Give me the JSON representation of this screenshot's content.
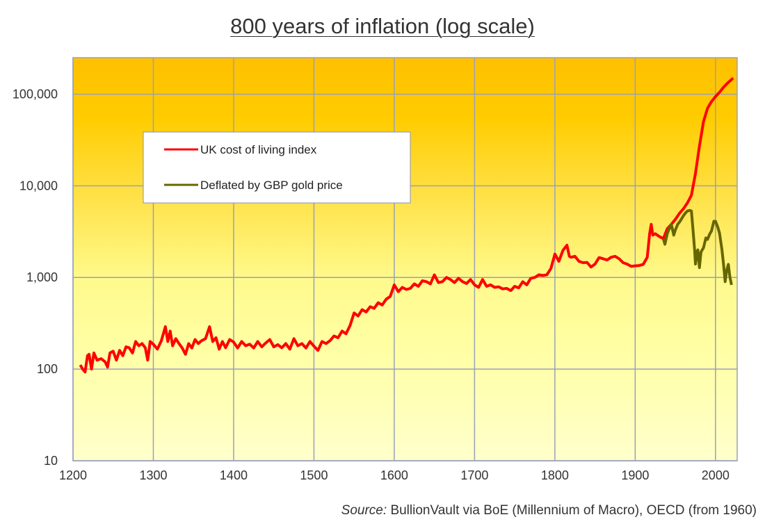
{
  "chart_data": {
    "type": "line",
    "title": "800 years of inflation (log scale)",
    "source_label": "Source:",
    "source_text": "BullionVault via BoE (Millennium of Macro), OECD (from 1960)",
    "xlabel": "",
    "ylabel": "",
    "xlim": [
      1200,
      2027
    ],
    "ylim": [
      10,
      250000
    ],
    "yscale": "log",
    "grid": true,
    "legend_position": "upper-left inside",
    "x_ticks": [
      "1200",
      "1300",
      "1400",
      "1500",
      "1600",
      "1700",
      "1800",
      "1900",
      "2000"
    ],
    "y_ticks": [
      "10",
      "100",
      "1,000",
      "10,000",
      "100,000"
    ],
    "background": {
      "top": "#FFC000",
      "bottom": "#FFFFCC"
    },
    "series": [
      {
        "name": "UK cost of living index",
        "color": "#FF0000",
        "points": [
          [
            1209,
            111
          ],
          [
            1212,
            100
          ],
          [
            1215,
            93
          ],
          [
            1218,
            140
          ],
          [
            1220,
            145
          ],
          [
            1223,
            100
          ],
          [
            1226,
            150
          ],
          [
            1230,
            125
          ],
          [
            1235,
            130
          ],
          [
            1240,
            120
          ],
          [
            1243,
            105
          ],
          [
            1246,
            150
          ],
          [
            1250,
            157
          ],
          [
            1254,
            125
          ],
          [
            1258,
            160
          ],
          [
            1262,
            140
          ],
          [
            1266,
            175
          ],
          [
            1270,
            171
          ],
          [
            1274,
            150
          ],
          [
            1278,
            200
          ],
          [
            1282,
            180
          ],
          [
            1286,
            190
          ],
          [
            1290,
            171
          ],
          [
            1293,
            125
          ],
          [
            1296,
            200
          ],
          [
            1300,
            187
          ],
          [
            1305,
            165
          ],
          [
            1310,
            204
          ],
          [
            1315,
            290
          ],
          [
            1318,
            200
          ],
          [
            1321,
            260
          ],
          [
            1324,
            180
          ],
          [
            1328,
            215
          ],
          [
            1332,
            190
          ],
          [
            1336,
            170
          ],
          [
            1340,
            145
          ],
          [
            1344,
            190
          ],
          [
            1348,
            170
          ],
          [
            1352,
            210
          ],
          [
            1356,
            190
          ],
          [
            1360,
            204
          ],
          [
            1365,
            215
          ],
          [
            1370,
            290
          ],
          [
            1374,
            200
          ],
          [
            1378,
            220
          ],
          [
            1382,
            165
          ],
          [
            1386,
            200
          ],
          [
            1390,
            171
          ],
          [
            1395,
            210
          ],
          [
            1400,
            197
          ],
          [
            1405,
            170
          ],
          [
            1410,
            200
          ],
          [
            1415,
            180
          ],
          [
            1420,
            187
          ],
          [
            1425,
            170
          ],
          [
            1430,
            200
          ],
          [
            1435,
            175
          ],
          [
            1440,
            193
          ],
          [
            1445,
            210
          ],
          [
            1450,
            175
          ],
          [
            1455,
            185
          ],
          [
            1460,
            171
          ],
          [
            1465,
            190
          ],
          [
            1470,
            165
          ],
          [
            1475,
            215
          ],
          [
            1480,
            180
          ],
          [
            1485,
            190
          ],
          [
            1490,
            170
          ],
          [
            1495,
            200
          ],
          [
            1500,
            178
          ],
          [
            1505,
            160
          ],
          [
            1510,
            200
          ],
          [
            1515,
            190
          ],
          [
            1520,
            204
          ],
          [
            1525,
            230
          ],
          [
            1530,
            220
          ],
          [
            1535,
            260
          ],
          [
            1540,
            243
          ],
          [
            1545,
            300
          ],
          [
            1550,
            410
          ],
          [
            1555,
            380
          ],
          [
            1560,
            445
          ],
          [
            1565,
            420
          ],
          [
            1570,
            480
          ],
          [
            1575,
            460
          ],
          [
            1580,
            530
          ],
          [
            1585,
            500
          ],
          [
            1590,
            580
          ],
          [
            1595,
            620
          ],
          [
            1600,
            830
          ],
          [
            1605,
            700
          ],
          [
            1610,
            780
          ],
          [
            1615,
            740
          ],
          [
            1620,
            760
          ],
          [
            1625,
            850
          ],
          [
            1630,
            800
          ],
          [
            1635,
            920
          ],
          [
            1640,
            900
          ],
          [
            1645,
            850
          ],
          [
            1650,
            1070
          ],
          [
            1655,
            880
          ],
          [
            1660,
            900
          ],
          [
            1665,
            1000
          ],
          [
            1670,
            950
          ],
          [
            1675,
            880
          ],
          [
            1680,
            980
          ],
          [
            1685,
            900
          ],
          [
            1690,
            860
          ],
          [
            1695,
            950
          ],
          [
            1700,
            830
          ],
          [
            1705,
            780
          ],
          [
            1710,
            950
          ],
          [
            1715,
            800
          ],
          [
            1720,
            830
          ],
          [
            1725,
            780
          ],
          [
            1730,
            790
          ],
          [
            1735,
            750
          ],
          [
            1740,
            760
          ],
          [
            1745,
            720
          ],
          [
            1750,
            800
          ],
          [
            1755,
            770
          ],
          [
            1760,
            900
          ],
          [
            1765,
            830
          ],
          [
            1770,
            980
          ],
          [
            1775,
            1000
          ],
          [
            1780,
            1070
          ],
          [
            1785,
            1050
          ],
          [
            1790,
            1070
          ],
          [
            1795,
            1250
          ],
          [
            1800,
            1800
          ],
          [
            1805,
            1500
          ],
          [
            1810,
            1970
          ],
          [
            1815,
            2250
          ],
          [
            1818,
            1700
          ],
          [
            1820,
            1660
          ],
          [
            1825,
            1700
          ],
          [
            1830,
            1500
          ],
          [
            1835,
            1450
          ],
          [
            1840,
            1460
          ],
          [
            1845,
            1300
          ],
          [
            1850,
            1400
          ],
          [
            1855,
            1650
          ],
          [
            1860,
            1600
          ],
          [
            1865,
            1550
          ],
          [
            1870,
            1660
          ],
          [
            1875,
            1700
          ],
          [
            1880,
            1600
          ],
          [
            1885,
            1450
          ],
          [
            1890,
            1400
          ],
          [
            1895,
            1320
          ],
          [
            1900,
            1340
          ],
          [
            1905,
            1350
          ],
          [
            1910,
            1390
          ],
          [
            1915,
            1660
          ],
          [
            1918,
            3000
          ],
          [
            1920,
            3800
          ],
          [
            1922,
            2900
          ],
          [
            1925,
            3000
          ],
          [
            1930,
            2800
          ],
          [
            1935,
            2650
          ],
          [
            1940,
            3400
          ],
          [
            1945,
            3800
          ],
          [
            1950,
            4300
          ],
          [
            1955,
            5000
          ],
          [
            1960,
            5600
          ],
          [
            1965,
            6500
          ],
          [
            1970,
            7900
          ],
          [
            1975,
            13600
          ],
          [
            1980,
            27000
          ],
          [
            1985,
            50000
          ],
          [
            1990,
            70000
          ],
          [
            1995,
            83000
          ],
          [
            2000,
            94000
          ],
          [
            2005,
            105000
          ],
          [
            2010,
            119000
          ],
          [
            2015,
            132000
          ],
          [
            2022,
            150000
          ]
        ]
      },
      {
        "name": "Deflated by GBP gold price",
        "color": "#666600",
        "points": [
          [
            1935,
            2650
          ],
          [
            1937,
            2300
          ],
          [
            1940,
            3000
          ],
          [
            1943,
            3500
          ],
          [
            1945,
            3800
          ],
          [
            1948,
            2900
          ],
          [
            1950,
            3300
          ],
          [
            1953,
            3800
          ],
          [
            1955,
            4000
          ],
          [
            1958,
            4400
          ],
          [
            1960,
            4700
          ],
          [
            1963,
            5100
          ],
          [
            1965,
            5300
          ],
          [
            1968,
            5400
          ],
          [
            1970,
            5300
          ],
          [
            1972,
            3300
          ],
          [
            1974,
            2000
          ],
          [
            1975,
            1400
          ],
          [
            1977,
            1900
          ],
          [
            1978,
            2000
          ],
          [
            1980,
            1280
          ],
          [
            1982,
            1900
          ],
          [
            1985,
            2100
          ],
          [
            1988,
            2700
          ],
          [
            1990,
            2600
          ],
          [
            1993,
            3000
          ],
          [
            1995,
            3200
          ],
          [
            1998,
            4100
          ],
          [
            2000,
            4100
          ],
          [
            2003,
            3500
          ],
          [
            2005,
            3050
          ],
          [
            2008,
            2000
          ],
          [
            2010,
            1390
          ],
          [
            2012,
            900
          ],
          [
            2014,
            1200
          ],
          [
            2016,
            1390
          ],
          [
            2018,
            1000
          ],
          [
            2020,
            830
          ]
        ]
      }
    ]
  }
}
